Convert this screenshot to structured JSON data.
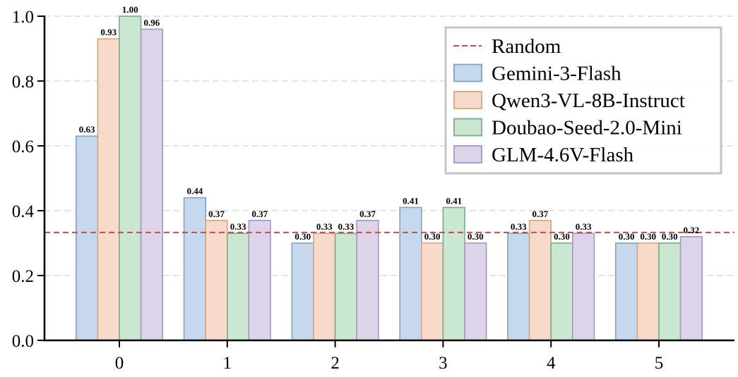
{
  "chart_data": {
    "type": "bar",
    "title": "",
    "xlabel": "",
    "ylabel": "",
    "categories": [
      "0",
      "1",
      "2",
      "3",
      "4",
      "5"
    ],
    "ylim": [
      0,
      1.0
    ],
    "yticks": [
      "0.0",
      "0.2",
      "0.4",
      "0.6",
      "0.8",
      "1.0"
    ],
    "grid": "horizontal dashed",
    "legend_position": "upper right",
    "reference_line": {
      "name": "Random",
      "value": 0.333,
      "color": "#d0484a",
      "style": "dashed"
    },
    "series": [
      {
        "name": "Gemini-3-Flash",
        "fill": "#c6d9ec",
        "edge": "#7fa3c8",
        "values": [
          0.63,
          0.44,
          0.3,
          0.41,
          0.33,
          0.3
        ],
        "labels": [
          "0.63",
          "0.44",
          "0.30",
          "0.41",
          "0.33",
          "0.30"
        ]
      },
      {
        "name": "Qwen3-VL-8B-Instruct",
        "fill": "#f7dac9",
        "edge": "#dca37e",
        "values": [
          0.93,
          0.37,
          0.33,
          0.3,
          0.37,
          0.3
        ],
        "labels": [
          "0.93",
          "0.37",
          "0.33",
          "0.30",
          "0.37",
          "0.30"
        ]
      },
      {
        "name": "Doubao-Seed-2.0-Mini",
        "fill": "#c9e7d1",
        "edge": "#79ad85",
        "values": [
          1.0,
          0.33,
          0.33,
          0.41,
          0.3,
          0.3
        ],
        "labels": [
          "1.00",
          "0.33",
          "0.33",
          "0.41",
          "0.30",
          "0.30"
        ]
      },
      {
        "name": "GLM-4.6V-Flash",
        "fill": "#ddd4ea",
        "edge": "#a596c4",
        "values": [
          0.96,
          0.37,
          0.37,
          0.3,
          0.33,
          0.32
        ],
        "labels": [
          "0.96",
          "0.37",
          "0.37",
          "0.30",
          "0.33",
          "0.32"
        ]
      }
    ]
  }
}
